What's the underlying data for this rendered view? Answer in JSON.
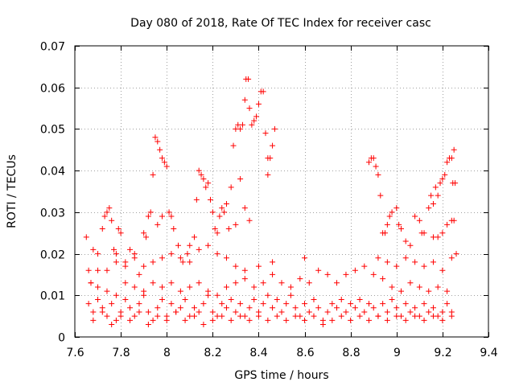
{
  "chart_data": {
    "type": "scatter",
    "title": "Day 080 of 2018, Rate Of TEC Index for receiver casc",
    "xlabel": "GPS time / hours",
    "ylabel": "ROTI / TECUs",
    "xlim": [
      7.6,
      9.4
    ],
    "ylim": [
      0,
      0.07
    ],
    "x_ticks": [
      7.6,
      7.8,
      8.0,
      8.2,
      8.4,
      8.6,
      8.8,
      9.0,
      9.2,
      9.4
    ],
    "x_tick_labels": [
      "7.6",
      "7.8",
      "8",
      "8.2",
      "8.4",
      "8.6",
      "8.8",
      "9",
      "9.2",
      "9.4"
    ],
    "y_ticks": [
      0,
      0.01,
      0.02,
      0.03,
      0.04,
      0.05,
      0.06,
      0.07
    ],
    "y_tick_labels": [
      "0",
      "0.01",
      "0.02",
      "0.03",
      "0.04",
      "0.05",
      "0.06",
      "0.07"
    ],
    "grid": true,
    "marker": "+",
    "color": "#ff0000",
    "series": [
      {
        "name": "ROTI",
        "points": [
          [
            7.65,
            0.024
          ],
          [
            7.66,
            0.016
          ],
          [
            7.67,
            0.013
          ],
          [
            7.68,
            0.021
          ],
          [
            7.7,
            0.02
          ],
          [
            7.72,
            0.026
          ],
          [
            7.73,
            0.029
          ],
          [
            7.74,
            0.03
          ],
          [
            7.75,
            0.031
          ],
          [
            7.76,
            0.028
          ],
          [
            7.77,
            0.021
          ],
          [
            7.78,
            0.02
          ],
          [
            7.79,
            0.026
          ],
          [
            7.8,
            0.025
          ],
          [
            7.82,
            0.018
          ],
          [
            7.84,
            0.021
          ],
          [
            7.86,
            0.02
          ],
          [
            7.88,
            0.015
          ],
          [
            7.9,
            0.025
          ],
          [
            7.91,
            0.024
          ],
          [
            7.92,
            0.029
          ],
          [
            7.93,
            0.03
          ],
          [
            7.95,
            0.048
          ],
          [
            7.96,
            0.047
          ],
          [
            7.97,
            0.045
          ],
          [
            7.98,
            0.043
          ],
          [
            7.99,
            0.042
          ],
          [
            8.0,
            0.041
          ],
          [
            8.01,
            0.03
          ],
          [
            8.02,
            0.029
          ],
          [
            7.94,
            0.039
          ],
          [
            7.96,
            0.027
          ],
          [
            7.98,
            0.029
          ],
          [
            8.03,
            0.026
          ],
          [
            8.05,
            0.022
          ],
          [
            8.07,
            0.018
          ],
          [
            8.09,
            0.02
          ],
          [
            8.1,
            0.022
          ],
          [
            8.12,
            0.024
          ],
          [
            8.13,
            0.033
          ],
          [
            8.14,
            0.04
          ],
          [
            8.15,
            0.039
          ],
          [
            8.16,
            0.038
          ],
          [
            8.17,
            0.036
          ],
          [
            8.18,
            0.037
          ],
          [
            8.19,
            0.033
          ],
          [
            8.2,
            0.03
          ],
          [
            8.21,
            0.026
          ],
          [
            8.22,
            0.025
          ],
          [
            8.23,
            0.029
          ],
          [
            8.24,
            0.031
          ],
          [
            8.25,
            0.03
          ],
          [
            8.26,
            0.032
          ],
          [
            8.27,
            0.026
          ],
          [
            8.28,
            0.036
          ],
          [
            8.29,
            0.046
          ],
          [
            8.3,
            0.05
          ],
          [
            8.31,
            0.051
          ],
          [
            8.32,
            0.05
          ],
          [
            8.33,
            0.051
          ],
          [
            8.34,
            0.057
          ],
          [
            8.345,
            0.062
          ],
          [
            8.355,
            0.062
          ],
          [
            8.36,
            0.055
          ],
          [
            8.37,
            0.051
          ],
          [
            8.38,
            0.052
          ],
          [
            8.39,
            0.053
          ],
          [
            8.4,
            0.056
          ],
          [
            8.41,
            0.059
          ],
          [
            8.42,
            0.059
          ],
          [
            8.43,
            0.049
          ],
          [
            8.44,
            0.043
          ],
          [
            8.45,
            0.043
          ],
          [
            8.46,
            0.046
          ],
          [
            8.47,
            0.05
          ],
          [
            8.44,
            0.039
          ],
          [
            8.32,
            0.038
          ],
          [
            8.34,
            0.031
          ],
          [
            8.36,
            0.028
          ],
          [
            8.3,
            0.027
          ],
          [
            8.88,
            0.042
          ],
          [
            8.89,
            0.043
          ],
          [
            8.9,
            0.043
          ],
          [
            8.91,
            0.041
          ],
          [
            8.92,
            0.039
          ],
          [
            8.93,
            0.034
          ],
          [
            8.94,
            0.025
          ],
          [
            8.95,
            0.025
          ],
          [
            8.96,
            0.027
          ],
          [
            8.97,
            0.029
          ],
          [
            8.98,
            0.03
          ],
          [
            9.0,
            0.031
          ],
          [
            9.01,
            0.027
          ],
          [
            9.02,
            0.026
          ],
          [
            9.04,
            0.023
          ],
          [
            9.06,
            0.022
          ],
          [
            9.08,
            0.029
          ],
          [
            9.1,
            0.028
          ],
          [
            9.11,
            0.025
          ],
          [
            9.12,
            0.025
          ],
          [
            9.14,
            0.031
          ],
          [
            9.15,
            0.034
          ],
          [
            9.16,
            0.032
          ],
          [
            9.17,
            0.036
          ],
          [
            9.18,
            0.034
          ],
          [
            9.19,
            0.037
          ],
          [
            9.2,
            0.038
          ],
          [
            9.21,
            0.039
          ],
          [
            9.22,
            0.042
          ],
          [
            9.23,
            0.043
          ],
          [
            9.24,
            0.043
          ],
          [
            9.25,
            0.045
          ],
          [
            9.245,
            0.037
          ],
          [
            9.255,
            0.037
          ],
          [
            9.25,
            0.028
          ],
          [
            9.24,
            0.028
          ],
          [
            9.22,
            0.027
          ],
          [
            9.2,
            0.025
          ],
          [
            9.18,
            0.024
          ],
          [
            9.16,
            0.024
          ],
          [
            7.66,
            0.008
          ],
          [
            7.68,
            0.006
          ],
          [
            7.7,
            0.009
          ],
          [
            7.72,
            0.007
          ],
          [
            7.74,
            0.005
          ],
          [
            7.76,
            0.008
          ],
          [
            7.78,
            0.004
          ],
          [
            7.8,
            0.006
          ],
          [
            7.82,
            0.009
          ],
          [
            7.84,
            0.007
          ],
          [
            7.86,
            0.005
          ],
          [
            7.88,
            0.008
          ],
          [
            7.9,
            0.01
          ],
          [
            7.92,
            0.006
          ],
          [
            7.94,
            0.004
          ],
          [
            7.96,
            0.007
          ],
          [
            7.98,
            0.009
          ],
          [
            8.0,
            0.005
          ],
          [
            8.02,
            0.008
          ],
          [
            8.04,
            0.006
          ],
          [
            8.06,
            0.007
          ],
          [
            8.08,
            0.009
          ],
          [
            8.1,
            0.005
          ],
          [
            8.12,
            0.007
          ],
          [
            8.14,
            0.006
          ],
          [
            8.16,
            0.008
          ],
          [
            8.18,
            0.01
          ],
          [
            8.2,
            0.006
          ],
          [
            8.22,
            0.005
          ],
          [
            8.24,
            0.008
          ],
          [
            8.26,
            0.007
          ],
          [
            8.28,
            0.009
          ],
          [
            8.3,
            0.006
          ],
          [
            8.32,
            0.008
          ],
          [
            8.34,
            0.005
          ],
          [
            8.36,
            0.007
          ],
          [
            8.38,
            0.009
          ],
          [
            8.4,
            0.006
          ],
          [
            8.42,
            0.008
          ],
          [
            8.44,
            0.01
          ],
          [
            8.46,
            0.007
          ],
          [
            8.48,
            0.009
          ],
          [
            8.5,
            0.006
          ],
          [
            8.52,
            0.008
          ],
          [
            8.54,
            0.01
          ],
          [
            8.56,
            0.007
          ],
          [
            8.58,
            0.005
          ],
          [
            8.6,
            0.008
          ],
          [
            8.62,
            0.006
          ],
          [
            8.64,
            0.009
          ],
          [
            8.66,
            0.007
          ],
          [
            8.68,
            0.004
          ],
          [
            8.7,
            0.006
          ],
          [
            8.72,
            0.008
          ],
          [
            8.74,
            0.007
          ],
          [
            8.76,
            0.009
          ],
          [
            8.78,
            0.006
          ],
          [
            8.8,
            0.008
          ],
          [
            8.82,
            0.007
          ],
          [
            8.84,
            0.009
          ],
          [
            8.86,
            0.006
          ],
          [
            8.88,
            0.008
          ],
          [
            8.9,
            0.007
          ],
          [
            8.92,
            0.005
          ],
          [
            8.94,
            0.008
          ],
          [
            8.96,
            0.006
          ],
          [
            8.98,
            0.009
          ],
          [
            9.0,
            0.007
          ],
          [
            9.02,
            0.005
          ],
          [
            9.04,
            0.008
          ],
          [
            9.06,
            0.006
          ],
          [
            9.08,
            0.007
          ],
          [
            9.1,
            0.005
          ],
          [
            9.12,
            0.008
          ],
          [
            9.14,
            0.006
          ],
          [
            9.16,
            0.007
          ],
          [
            9.18,
            0.005
          ],
          [
            9.2,
            0.006
          ],
          [
            9.22,
            0.008
          ],
          [
            9.24,
            0.006
          ],
          [
            7.67,
            0.013
          ],
          [
            7.7,
            0.012
          ],
          [
            7.74,
            0.011
          ],
          [
            7.78,
            0.01
          ],
          [
            7.82,
            0.013
          ],
          [
            7.86,
            0.012
          ],
          [
            7.9,
            0.011
          ],
          [
            7.94,
            0.013
          ],
          [
            7.98,
            0.012
          ],
          [
            8.02,
            0.013
          ],
          [
            8.06,
            0.011
          ],
          [
            8.1,
            0.012
          ],
          [
            8.14,
            0.013
          ],
          [
            8.18,
            0.011
          ],
          [
            8.22,
            0.01
          ],
          [
            8.26,
            0.012
          ],
          [
            8.3,
            0.013
          ],
          [
            8.34,
            0.014
          ],
          [
            8.38,
            0.012
          ],
          [
            8.42,
            0.013
          ],
          [
            8.46,
            0.015
          ],
          [
            8.5,
            0.013
          ],
          [
            8.54,
            0.012
          ],
          [
            8.58,
            0.014
          ],
          [
            8.62,
            0.013
          ],
          [
            8.66,
            0.016
          ],
          [
            8.7,
            0.015
          ],
          [
            8.74,
            0.013
          ],
          [
            8.78,
            0.015
          ],
          [
            8.82,
            0.016
          ],
          [
            8.86,
            0.017
          ],
          [
            8.9,
            0.015
          ],
          [
            8.94,
            0.014
          ],
          [
            8.98,
            0.012
          ],
          [
            9.02,
            0.011
          ],
          [
            9.06,
            0.013
          ],
          [
            9.1,
            0.012
          ],
          [
            9.14,
            0.011
          ],
          [
            9.18,
            0.012
          ],
          [
            9.22,
            0.011
          ],
          [
            7.7,
            0.016
          ],
          [
            7.74,
            0.016
          ],
          [
            7.78,
            0.018
          ],
          [
            7.82,
            0.017
          ],
          [
            7.86,
            0.019
          ],
          [
            7.9,
            0.017
          ],
          [
            7.94,
            0.018
          ],
          [
            7.98,
            0.019
          ],
          [
            8.02,
            0.02
          ],
          [
            8.06,
            0.019
          ],
          [
            8.1,
            0.018
          ],
          [
            8.14,
            0.021
          ],
          [
            8.18,
            0.022
          ],
          [
            8.22,
            0.02
          ],
          [
            8.26,
            0.019
          ],
          [
            8.3,
            0.017
          ],
          [
            8.34,
            0.016
          ],
          [
            8.4,
            0.017
          ],
          [
            8.46,
            0.018
          ],
          [
            8.6,
            0.019
          ],
          [
            8.92,
            0.019
          ],
          [
            8.96,
            0.018
          ],
          [
            9.0,
            0.017
          ],
          [
            9.04,
            0.019
          ],
          [
            9.08,
            0.018
          ],
          [
            9.12,
            0.017
          ],
          [
            9.16,
            0.018
          ],
          [
            9.2,
            0.016
          ],
          [
            9.24,
            0.019
          ],
          [
            9.26,
            0.02
          ],
          [
            7.68,
            0.004
          ],
          [
            7.72,
            0.006
          ],
          [
            7.76,
            0.003
          ],
          [
            7.8,
            0.005
          ],
          [
            7.84,
            0.004
          ],
          [
            7.88,
            0.006
          ],
          [
            7.92,
            0.003
          ],
          [
            7.96,
            0.005
          ],
          [
            8.0,
            0.004
          ],
          [
            8.04,
            0.006
          ],
          [
            8.08,
            0.004
          ],
          [
            8.12,
            0.005
          ],
          [
            8.16,
            0.003
          ],
          [
            8.2,
            0.004
          ],
          [
            8.24,
            0.005
          ],
          [
            8.28,
            0.004
          ],
          [
            8.32,
            0.005
          ],
          [
            8.36,
            0.004
          ],
          [
            8.4,
            0.005
          ],
          [
            8.44,
            0.004
          ],
          [
            8.48,
            0.005
          ],
          [
            8.52,
            0.004
          ],
          [
            8.56,
            0.005
          ],
          [
            8.6,
            0.004
          ],
          [
            8.64,
            0.005
          ],
          [
            8.68,
            0.003
          ],
          [
            8.72,
            0.004
          ],
          [
            8.76,
            0.005
          ],
          [
            8.8,
            0.004
          ],
          [
            8.84,
            0.005
          ],
          [
            8.88,
            0.004
          ],
          [
            8.92,
            0.005
          ],
          [
            8.96,
            0.004
          ],
          [
            9.0,
            0.005
          ],
          [
            9.04,
            0.004
          ],
          [
            9.08,
            0.005
          ],
          [
            9.12,
            0.004
          ],
          [
            9.16,
            0.005
          ],
          [
            9.2,
            0.004
          ],
          [
            9.24,
            0.005
          ]
        ]
      }
    ]
  }
}
